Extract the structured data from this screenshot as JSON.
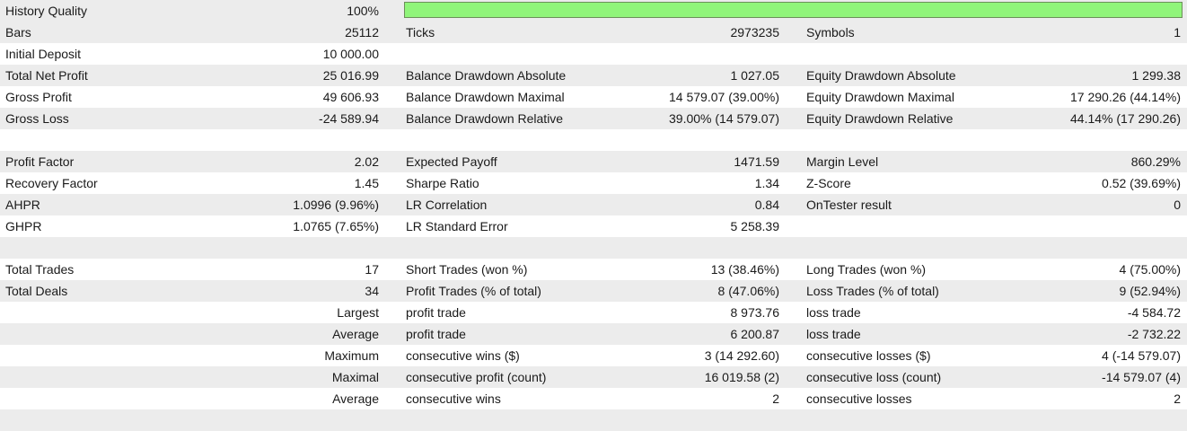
{
  "colors": {
    "quality_bar": "#90f57a",
    "row_shade": "#ececec"
  },
  "history": {
    "label": "History Quality",
    "value": "100%",
    "fraction": 1.0
  },
  "stats": {
    "bars_label": "Bars",
    "bars_value": "25112",
    "ticks_label": "Ticks",
    "ticks_value": "2973235",
    "symbols_label": "Symbols",
    "symbols_value": "1",
    "initial_deposit_label": "Initial Deposit",
    "initial_deposit_value": "10 000.00",
    "net_profit_label": "Total Net Profit",
    "net_profit_value": "25 016.99",
    "bal_dd_abs_label": "Balance Drawdown Absolute",
    "bal_dd_abs_value": "1 027.05",
    "eq_dd_abs_label": "Equity Drawdown Absolute",
    "eq_dd_abs_value": "1 299.38",
    "gross_profit_label": "Gross Profit",
    "gross_profit_value": "49 606.93",
    "bal_dd_max_label": "Balance Drawdown Maximal",
    "bal_dd_max_value": "14 579.07 (39.00%)",
    "eq_dd_max_label": "Equity Drawdown Maximal",
    "eq_dd_max_value": "17 290.26 (44.14%)",
    "gross_loss_label": "Gross Loss",
    "gross_loss_value": "-24 589.94",
    "bal_dd_rel_label": "Balance Drawdown Relative",
    "bal_dd_rel_value": "39.00% (14 579.07)",
    "eq_dd_rel_label": "Equity Drawdown Relative",
    "eq_dd_rel_value": "44.14% (17 290.26)",
    "profit_factor_label": "Profit Factor",
    "profit_factor_value": "2.02",
    "expected_payoff_label": "Expected Payoff",
    "expected_payoff_value": "1471.59",
    "margin_level_label": "Margin Level",
    "margin_level_value": "860.29%",
    "recovery_factor_label": "Recovery Factor",
    "recovery_factor_value": "1.45",
    "sharpe_label": "Sharpe Ratio",
    "sharpe_value": "1.34",
    "zscore_label": "Z-Score",
    "zscore_value": "0.52 (39.69%)",
    "ahpr_label": "AHPR",
    "ahpr_value": "1.0996 (9.96%)",
    "lr_corr_label": "LR Correlation",
    "lr_corr_value": "0.84",
    "ontester_label": "OnTester result",
    "ontester_value": "0",
    "ghpr_label": "GHPR",
    "ghpr_value": "1.0765 (7.65%)",
    "lr_std_label": "LR Standard Error",
    "lr_std_value": "5 258.39",
    "total_trades_label": "Total Trades",
    "total_trades_value": "17",
    "short_trades_label": "Short Trades (won %)",
    "short_trades_value": "13 (38.46%)",
    "long_trades_label": "Long Trades (won %)",
    "long_trades_value": "4 (75.00%)",
    "total_deals_label": "Total Deals",
    "total_deals_value": "34",
    "profit_trades_label": "Profit Trades (% of total)",
    "profit_trades_value": "8 (47.06%)",
    "loss_trades_label": "Loss Trades (% of total)",
    "loss_trades_value": "9 (52.94%)",
    "largest_label": "Largest",
    "largest_profit_label": "profit trade",
    "largest_profit_value": "8 973.76",
    "largest_loss_label": "loss trade",
    "largest_loss_value": "-4 584.72",
    "average_label": "Average",
    "avg_profit_label": "profit trade",
    "avg_profit_value": "6 200.87",
    "avg_loss_label": "loss trade",
    "avg_loss_value": "-2 732.22",
    "maximum_label": "Maximum",
    "max_cons_wins_label": "consecutive wins ($)",
    "max_cons_wins_value": "3 (14 292.60)",
    "max_cons_losses_label": "consecutive losses ($)",
    "max_cons_losses_value": "4 (-14 579.07)",
    "maximal_label": "Maximal",
    "maximal_profit_label": "consecutive profit (count)",
    "maximal_profit_value": "16 019.58 (2)",
    "maximal_loss_label": "consecutive loss (count)",
    "maximal_loss_value": "-14 579.07 (4)",
    "average2_label": "Average",
    "avg_cons_wins_label": "consecutive wins",
    "avg_cons_wins_value": "2",
    "avg_cons_losses_label": "consecutive losses",
    "avg_cons_losses_value": "2"
  }
}
